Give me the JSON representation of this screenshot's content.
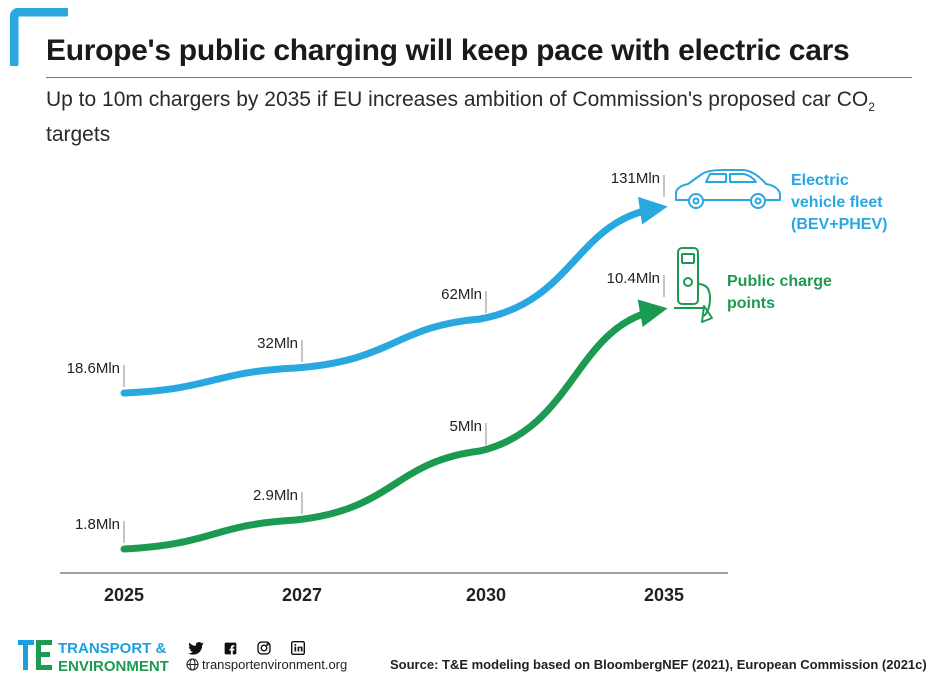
{
  "title": "Europe's public charging will keep pace with electric cars",
  "subtitle_main": "Up to 10m chargers by 2035 if EU increases ambition of Commission's proposed car CO",
  "subtitle_sub": "2",
  "subtitle_end": " targets",
  "colors": {
    "ev": "#29a8e0",
    "charge": "#1c9a52",
    "axis": "#333333"
  },
  "chart_data": {
    "type": "line",
    "categories": [
      "2025",
      "2027",
      "2030",
      "2035"
    ],
    "series": [
      {
        "name": "Electric vehicle fleet (BEV+PHEV)",
        "label_lines": [
          "Electric",
          "vehicle fleet",
          "(BEV+PHEV)"
        ],
        "values": [
          18.6,
          32,
          62,
          131
        ],
        "value_labels": [
          "18.6Mln",
          "32Mln",
          "62Mln",
          "131Mln"
        ],
        "icon": "car-icon"
      },
      {
        "name": "Public charge points",
        "label_lines": [
          "Public charge",
          "points"
        ],
        "values": [
          1.8,
          2.9,
          5,
          10.4
        ],
        "value_labels": [
          "1.8Mln",
          "2.9Mln",
          "5Mln",
          "10.4Mln"
        ],
        "icon": "charger-icon"
      }
    ]
  },
  "footer": {
    "brand_line1": "TRANSPORT &",
    "brand_line2": "ENVIRONMENT",
    "socials": [
      "twitter-icon",
      "facebook-icon",
      "instagram-icon",
      "linkedin-icon"
    ],
    "website": "transportenvironment.org",
    "source": "Source: T&E modeling based on BloombergNEF (2021), European Commission (2021c)"
  }
}
